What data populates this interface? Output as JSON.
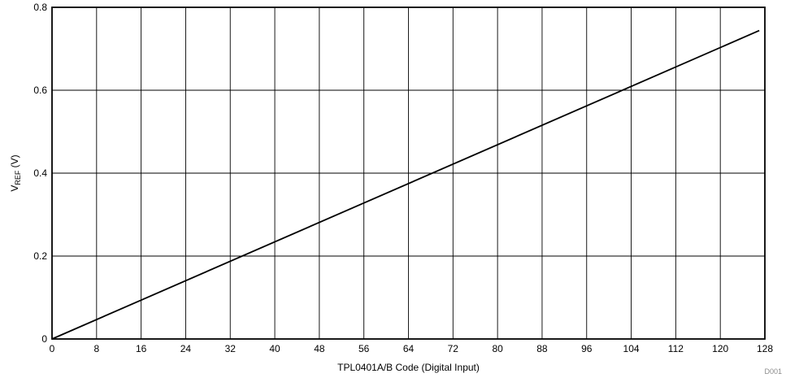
{
  "chart_data": {
    "type": "line",
    "xlabel": "TPL0401A/B Code (Digital Input)",
    "ylabel": {
      "main": "V",
      "subscript": "REF",
      "unit": " (V)"
    },
    "xlim": [
      0,
      128
    ],
    "ylim": [
      0,
      0.8
    ],
    "xticks": [
      "0",
      "8",
      "16",
      "24",
      "32",
      "40",
      "48",
      "56",
      "64",
      "72",
      "80",
      "88",
      "96",
      "104",
      "112",
      "120",
      "128"
    ],
    "yticks": [
      "0",
      "0.2",
      "0.4",
      "0.6",
      "0.8"
    ],
    "grid": true,
    "legend": "none",
    "series": [
      {
        "x": [
          0,
          127
        ],
        "y": [
          0,
          0.744
        ],
        "color": "#000000"
      }
    ],
    "figure_id": "D001"
  }
}
